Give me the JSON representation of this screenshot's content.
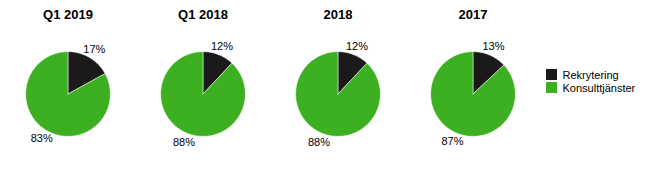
{
  "chart_data": [
    {
      "type": "pie",
      "title": "Q1 2019",
      "categories": [
        "Rekrytering",
        "Konsulttjänster"
      ],
      "values": [
        17,
        83
      ],
      "value_labels": [
        "17%",
        "83%"
      ],
      "colors": [
        "#1a1a1a",
        "#3cb021"
      ],
      "data_labels": true,
      "legend": "right"
    },
    {
      "type": "pie",
      "title": "Q1 2018",
      "categories": [
        "Rekrytering",
        "Konsulttjänster"
      ],
      "values": [
        12,
        88
      ],
      "value_labels": [
        "12%",
        "88%"
      ],
      "colors": [
        "#1a1a1a",
        "#3cb021"
      ],
      "data_labels": true,
      "legend": "right"
    },
    {
      "type": "pie",
      "title": "2018",
      "categories": [
        "Rekrytering",
        "Konsulttjänster"
      ],
      "values": [
        12,
        88
      ],
      "value_labels": [
        "12%",
        "88%"
      ],
      "colors": [
        "#1a1a1a",
        "#3cb021"
      ],
      "data_labels": true,
      "legend": "right"
    },
    {
      "type": "pie",
      "title": "2017",
      "categories": [
        "Rekrytering",
        "Konsulttjänster"
      ],
      "values": [
        13,
        87
      ],
      "value_labels": [
        "13%",
        "87%"
      ],
      "colors": [
        "#1a1a1a",
        "#3cb021"
      ],
      "data_labels": true,
      "legend": "right"
    }
  ]
}
